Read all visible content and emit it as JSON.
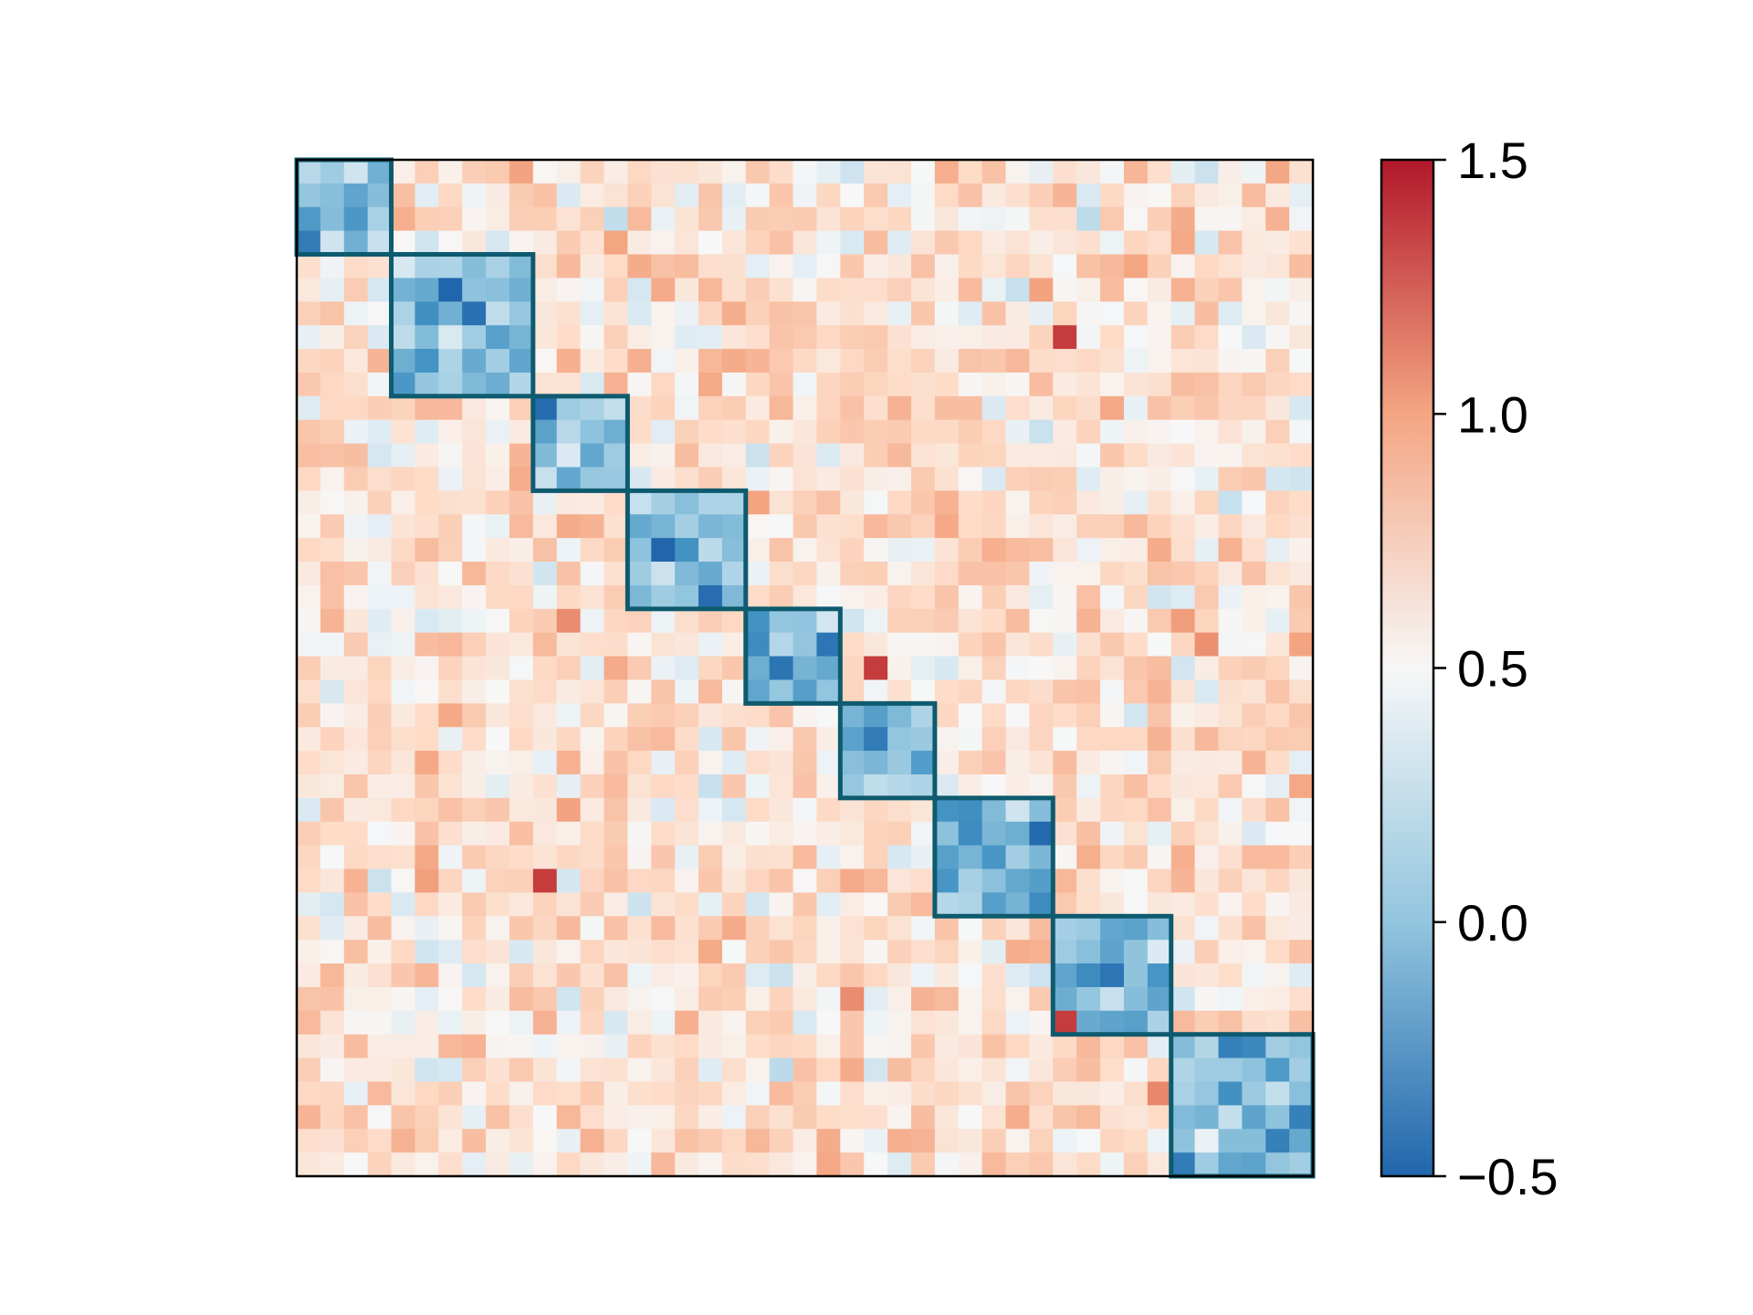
{
  "chart_data": {
    "type": "heatmap",
    "title": "",
    "xlabel": "",
    "ylabel": "",
    "grid": false,
    "n": 43,
    "colormap": "RdBu_r",
    "colorbar": {
      "vmin": -0.5,
      "vmax": 1.5,
      "ticks": [
        -0.5,
        0.0,
        0.5,
        1.0,
        1.5
      ],
      "tick_labels": [
        "−0.5",
        "0.0",
        "0.5",
        "1.0",
        "1.5"
      ]
    },
    "blocks": [
      [
        0,
        4
      ],
      [
        4,
        10
      ],
      [
        10,
        14
      ],
      [
        14,
        19
      ],
      [
        19,
        23
      ],
      [
        23,
        27
      ],
      [
        27,
        32
      ],
      [
        32,
        37
      ],
      [
        37,
        43
      ]
    ],
    "values_summary": {
      "diagonal_block_mean": -0.05,
      "off_block_mean": 0.65,
      "note_max_cells": [
        [
          7,
          32
        ],
        [
          21,
          24
        ],
        [
          30,
          10
        ],
        [
          36,
          32
        ]
      ]
    },
    "colors": {
      "block_outline": "#0e5a6e",
      "axes": "#000000"
    }
  }
}
